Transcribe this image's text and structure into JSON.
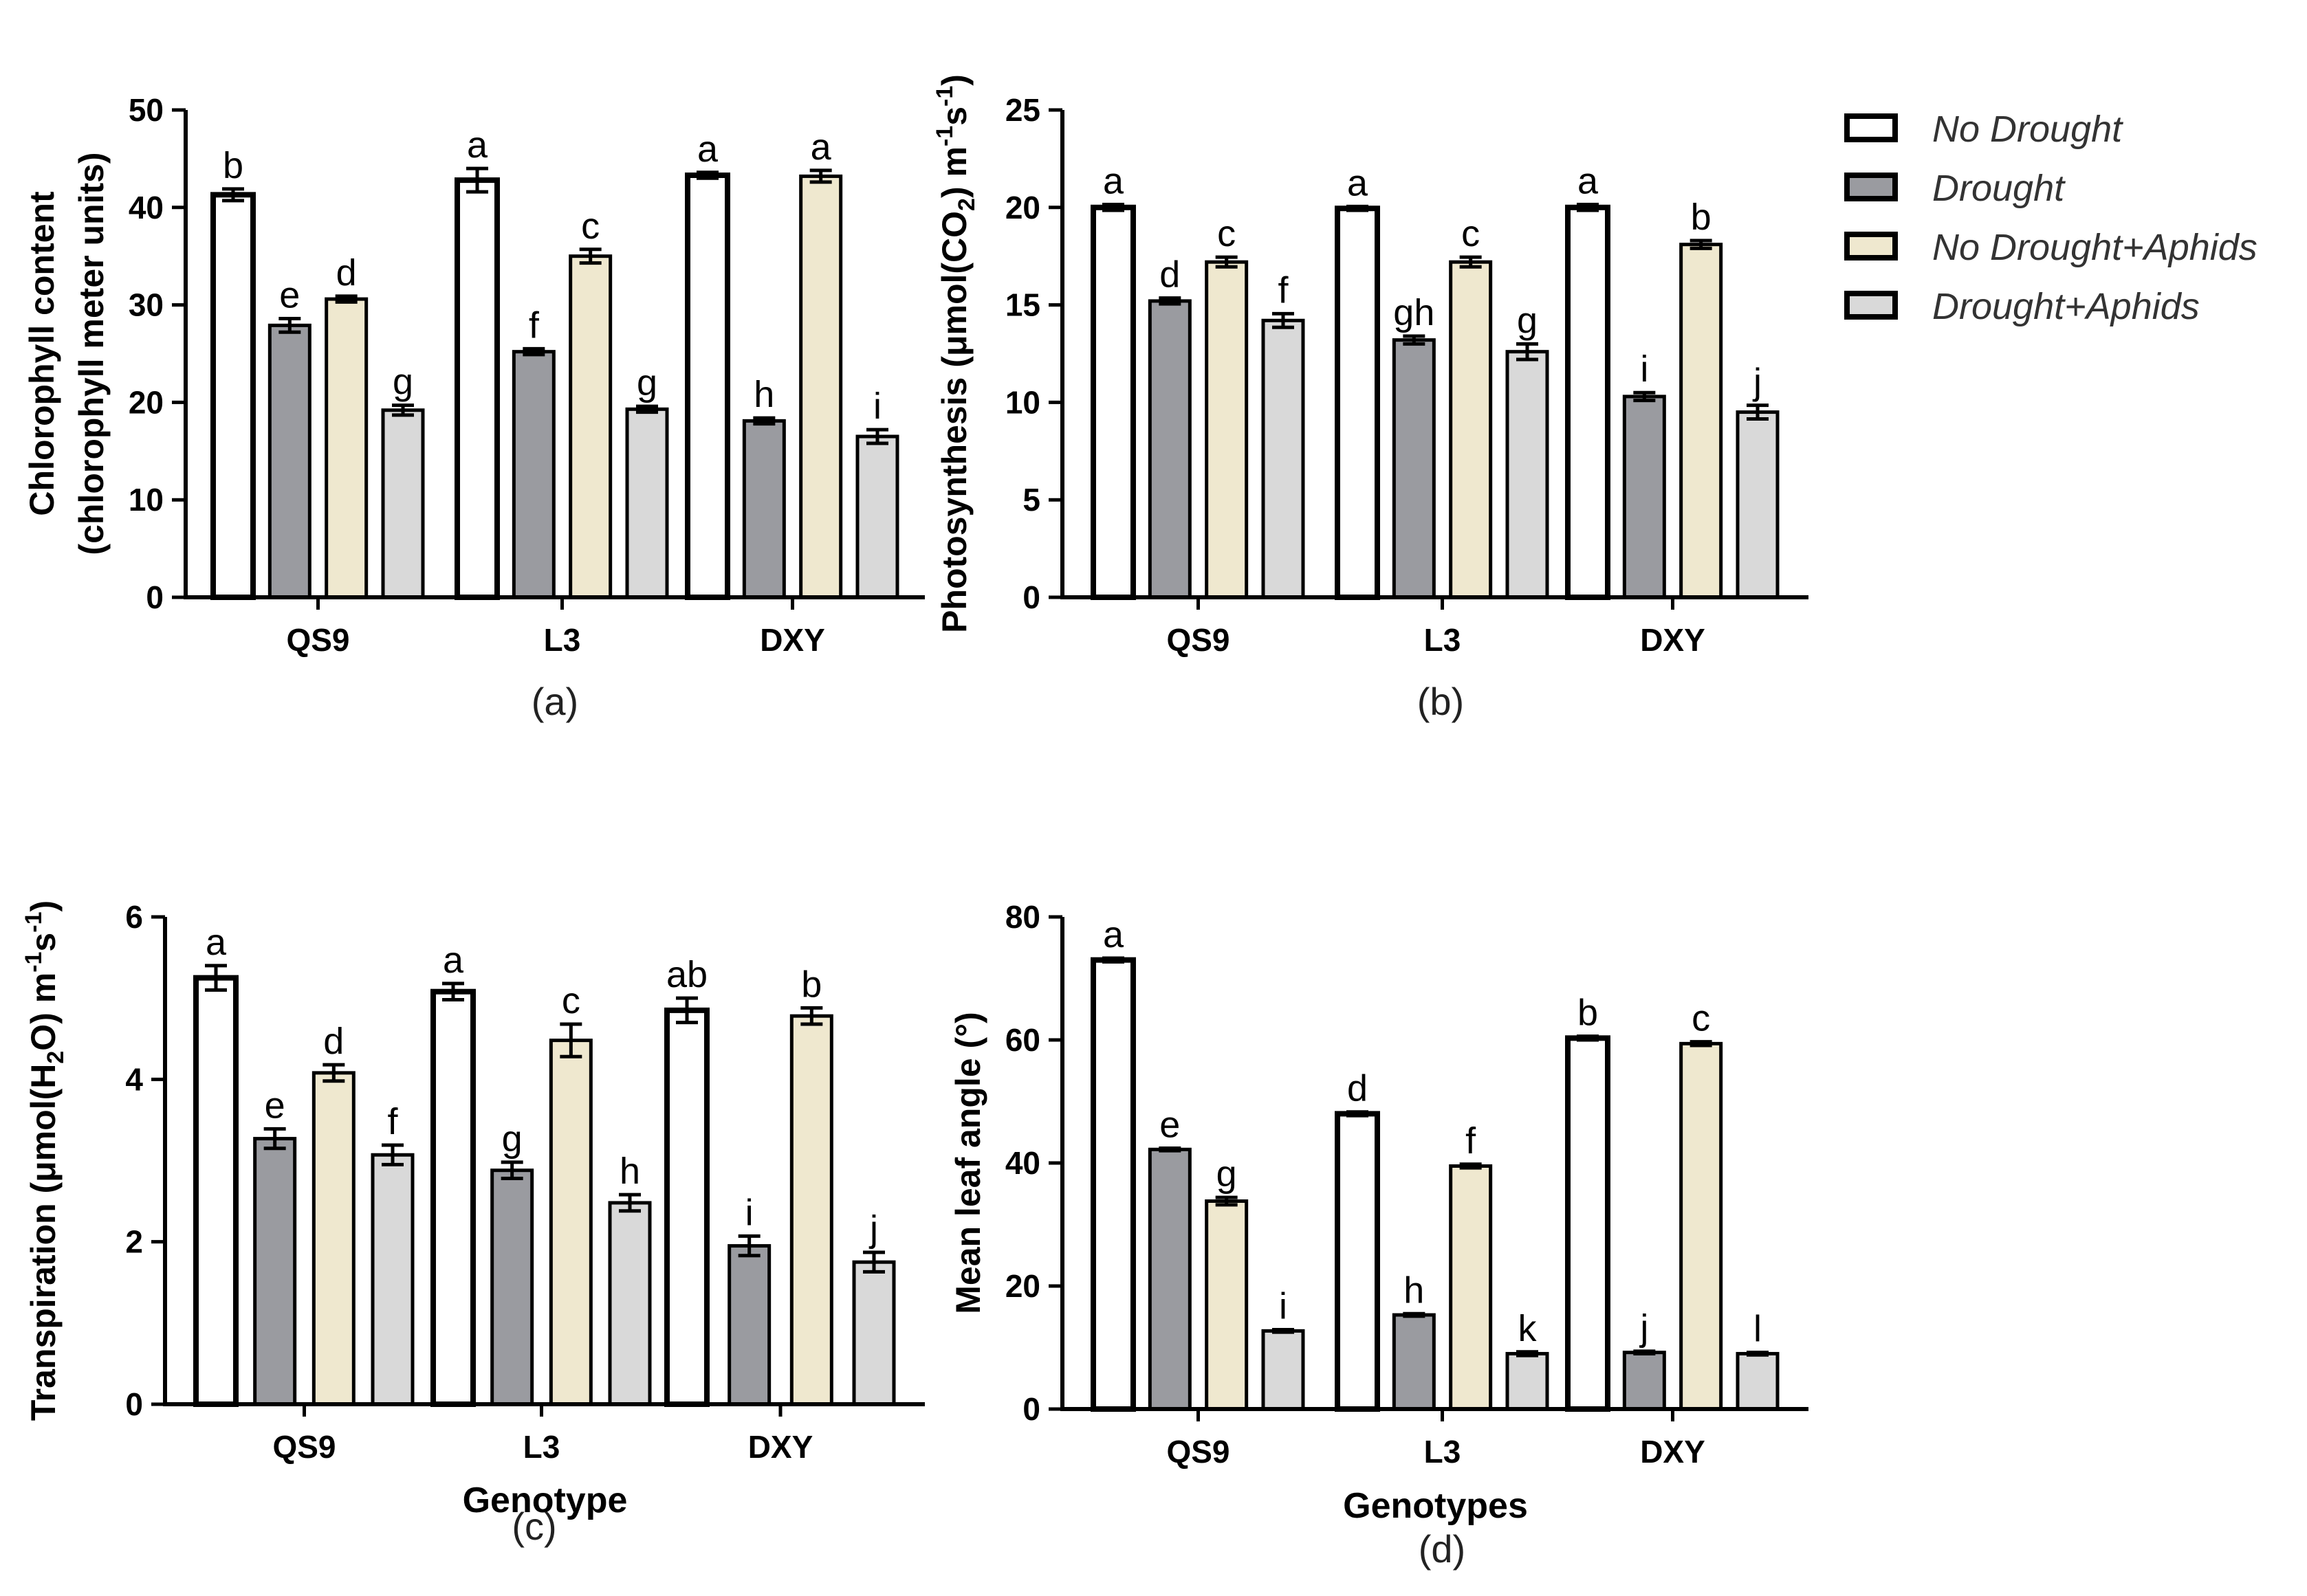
{
  "legend": {
    "items": [
      {
        "label": "No Drought",
        "color": "#ffffff"
      },
      {
        "label": "Drought",
        "color": "#9a9ba0"
      },
      {
        "label": "No Drought+Aphids",
        "color": "#efe8cf"
      },
      {
        "label": "Drought+Aphids",
        "color": "#d9d9d9"
      }
    ]
  },
  "chart_data": [
    {
      "type": "bar",
      "panel_label": "(a)",
      "ylabel": "Chlorophyll content",
      "ylabel_line2": "(chlorophyll meter units)",
      "xlabel": "",
      "ylim": [
        0,
        50
      ],
      "yticks": [
        0,
        10,
        20,
        30,
        40,
        50
      ],
      "categories": [
        "QS9",
        "L3",
        "DXY"
      ],
      "series": [
        {
          "name": "No Drought",
          "values": [
            41.3,
            42.8,
            43.3
          ],
          "errors": [
            0.6,
            1.2,
            0.3
          ],
          "letters": [
            "b",
            "a",
            "a"
          ]
        },
        {
          "name": "Drought",
          "values": [
            27.9,
            25.2,
            18.1
          ],
          "errors": [
            0.7,
            0.3,
            0.3
          ],
          "letters": [
            "e",
            "f",
            "h"
          ]
        },
        {
          "name": "No Drought+Aphids",
          "values": [
            30.6,
            35.0,
            43.2
          ],
          "errors": [
            0.3,
            0.7,
            0.6
          ],
          "letters": [
            "d",
            "c",
            "a"
          ]
        },
        {
          "name": "Drought+Aphids",
          "values": [
            19.2,
            19.3,
            16.5
          ],
          "errors": [
            0.5,
            0.3,
            0.7
          ],
          "letters": [
            "g",
            "g",
            "i"
          ]
        }
      ]
    },
    {
      "type": "bar",
      "panel_label": "(b)",
      "ylabel": "Photosynthesis (μmol(CO",
      "ylabel_sub": "2",
      "ylabel_mid": ") m",
      "ylabel_sup1": "-1",
      "ylabel_s": "s",
      "ylabel_sup2": "-1",
      "ylabel_end": ")",
      "xlabel": "",
      "ylim": [
        0,
        25
      ],
      "yticks": [
        0,
        5,
        10,
        15,
        20,
        25
      ],
      "categories": [
        "QS9",
        "L3",
        "DXY"
      ],
      "series": [
        {
          "name": "No Drought",
          "values": [
            20.0,
            19.95,
            20.0
          ],
          "errors": [
            0.15,
            0.1,
            0.15
          ],
          "letters": [
            "a",
            "a",
            "a"
          ]
        },
        {
          "name": "Drought",
          "values": [
            15.2,
            13.2,
            10.3
          ],
          "errors": [
            0.15,
            0.2,
            0.2
          ],
          "letters": [
            "d",
            "gh",
            "i"
          ]
        },
        {
          "name": "No Drought+Aphids",
          "values": [
            17.2,
            17.2,
            18.1
          ],
          "errors": [
            0.25,
            0.25,
            0.2
          ],
          "letters": [
            "c",
            "c",
            "b"
          ]
        },
        {
          "name": "Drought+Aphids",
          "values": [
            14.2,
            12.6,
            9.5
          ],
          "errors": [
            0.35,
            0.4,
            0.35
          ],
          "letters": [
            "f",
            "g",
            "j"
          ]
        }
      ]
    },
    {
      "type": "bar",
      "panel_label": "(c)",
      "ylabel": "Transpiration (μmol(H",
      "ylabel_sub": "2",
      "ylabel_mid": "O) m",
      "ylabel_sup1": "-1",
      "ylabel_s": "s",
      "ylabel_sup2": "-1",
      "ylabel_end": ")",
      "xlabel": "Genotype",
      "ylim": [
        0,
        6
      ],
      "yticks": [
        0,
        2,
        4,
        6
      ],
      "categories": [
        "QS9",
        "L3",
        "DXY"
      ],
      "series": [
        {
          "name": "No Drought",
          "values": [
            5.25,
            5.08,
            4.85
          ],
          "errors": [
            0.15,
            0.1,
            0.15
          ],
          "letters": [
            "a",
            "a",
            "ab"
          ]
        },
        {
          "name": "Drought",
          "values": [
            3.27,
            2.88,
            1.95
          ],
          "errors": [
            0.12,
            0.1,
            0.12
          ],
          "letters": [
            "e",
            "g",
            "i"
          ]
        },
        {
          "name": "No Drought+Aphids",
          "values": [
            4.08,
            4.48,
            4.78
          ],
          "errors": [
            0.1,
            0.2,
            0.1
          ],
          "letters": [
            "d",
            "c",
            "b"
          ]
        },
        {
          "name": "Drought+Aphids",
          "values": [
            3.07,
            2.48,
            1.75
          ],
          "errors": [
            0.12,
            0.1,
            0.12
          ],
          "letters": [
            "f",
            "h",
            "j"
          ]
        }
      ]
    },
    {
      "type": "bar",
      "panel_label": "(d)",
      "ylabel": "Mean leaf angle (°)",
      "xlabel": "Genotypes",
      "ylim": [
        0,
        80
      ],
      "yticks": [
        0,
        20,
        40,
        60,
        80
      ],
      "categories": [
        "QS9",
        "L3",
        "DXY"
      ],
      "series": [
        {
          "name": "No Drought",
          "values": [
            73.0,
            48.0,
            60.3
          ],
          "errors": [
            0.3,
            0.3,
            0.3
          ],
          "letters": [
            "a",
            "d",
            "b"
          ]
        },
        {
          "name": "Drought",
          "values": [
            42.2,
            15.3,
            9.2
          ],
          "errors": [
            0.2,
            0.2,
            0.2
          ],
          "letters": [
            "e",
            "h",
            "j"
          ]
        },
        {
          "name": "No Drought+Aphids",
          "values": [
            33.8,
            39.5,
            59.4
          ],
          "errors": [
            0.6,
            0.3,
            0.3
          ],
          "letters": [
            "g",
            "f",
            "c"
          ]
        },
        {
          "name": "Drought+Aphids",
          "values": [
            12.7,
            9.0,
            9.0
          ],
          "errors": [
            0.2,
            0.3,
            0.2
          ],
          "letters": [
            "i",
            "k",
            "l"
          ]
        }
      ]
    }
  ]
}
